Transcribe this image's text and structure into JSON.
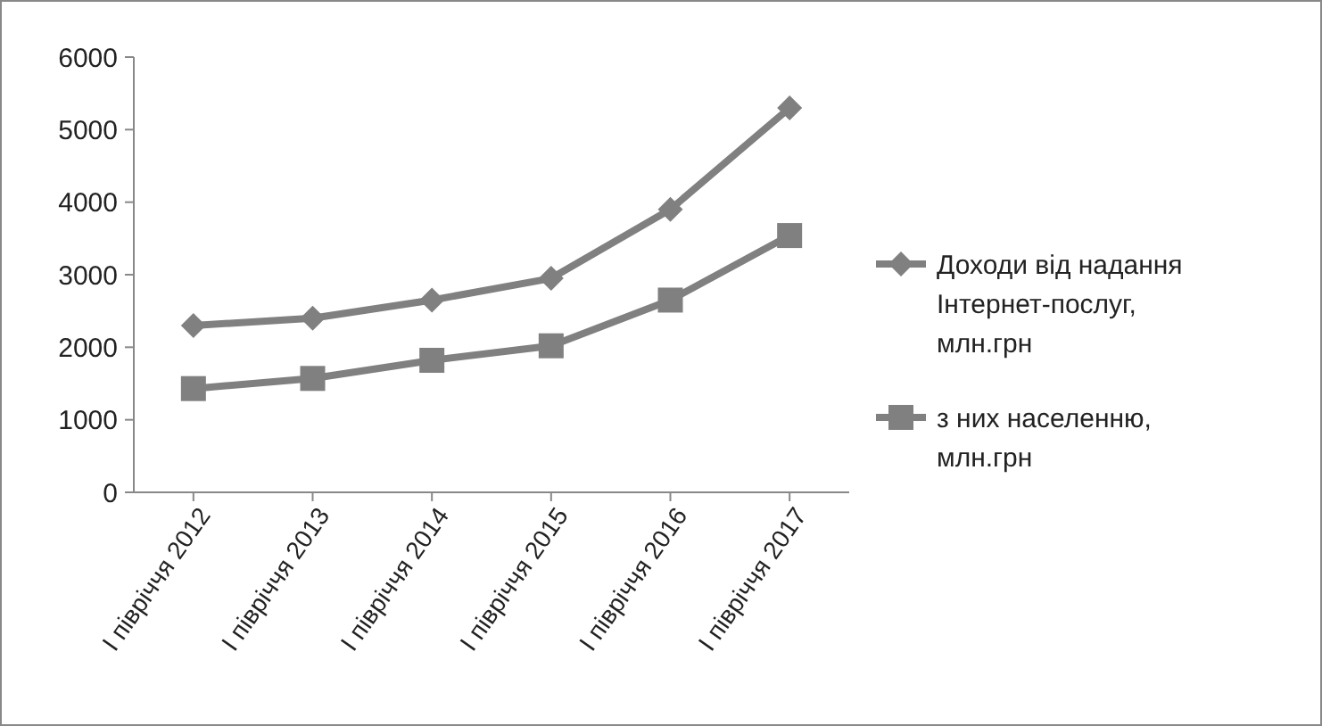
{
  "chart_data": {
    "type": "line",
    "categories": [
      "І півріччя 2012",
      "І півріччя 2013",
      "І півріччя 2014",
      "І півріччя 2015",
      "І півріччя 2016",
      "І півріччя 2017"
    ],
    "series": [
      {
        "name": "Доходи від надання Інтернет-послуг, млн.грн",
        "color": "#808080",
        "marker": "diamond",
        "values": [
          2300,
          2400,
          2650,
          2950,
          3900,
          5300
        ]
      },
      {
        "name": "з них населенню, млн.грн",
        "color": "#808080",
        "marker": "square",
        "values": [
          1430,
          1570,
          1820,
          2020,
          2650,
          3540
        ]
      }
    ],
    "ylim": [
      0,
      6000
    ],
    "yticks": [
      0,
      1000,
      2000,
      3000,
      4000,
      5000,
      6000
    ],
    "grid": false,
    "legend": "right"
  }
}
